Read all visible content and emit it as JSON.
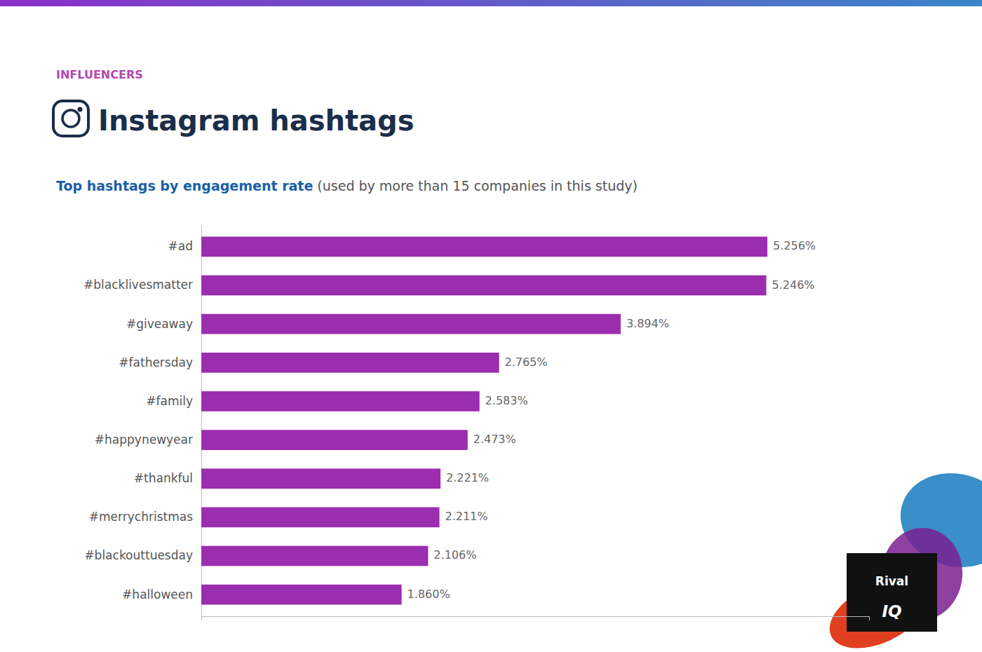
{
  "chart_data": {
    "type": "bar",
    "orientation": "horizontal",
    "title": "Instagram hashtags",
    "subtitle": [
      "Top hashtags by engagement rate",
      " (used by more than 15 companies in this study)"
    ],
    "annotations": [
      "INFLUENCERS",
      "Rival",
      "IQ"
    ],
    "categories": [
      "#halloween",
      "#blackouttuesday",
      "#merrychristmas",
      "#thankful",
      "#happynewyear",
      "#family",
      "#fathersday",
      "#giveaway",
      "#blacklivesmatter",
      "#ad"
    ],
    "values": [
      1.86,
      2.106,
      2.211,
      2.221,
      2.473,
      2.583,
      2.765,
      3.894,
      5.246,
      5.256
    ],
    "value_labels": [
      "1.860%",
      "2.106%",
      "2.211%",
      "2.221%",
      "2.473%",
      "2.583%",
      "2.765%",
      "3.894%",
      "5.246%",
      "5.256%"
    ],
    "data_labels": true,
    "color": "#9b2eae",
    "xlim": [
      0,
      6.2
    ],
    "grid": false,
    "tick_labels": "y"
  }
}
